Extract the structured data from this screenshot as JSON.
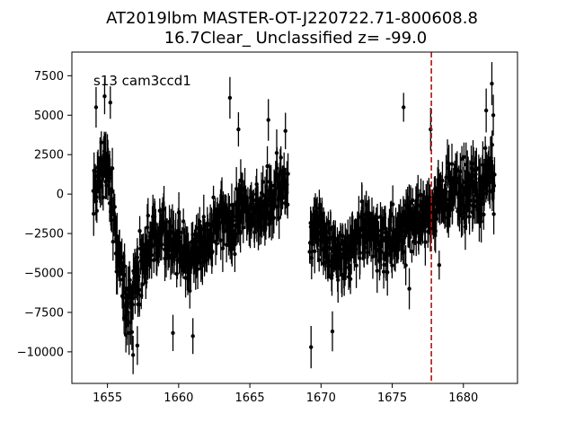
{
  "chart_data": {
    "type": "scatter",
    "title_line1": "AT2019lbm  MASTER-OT-J220722.71-800608.8",
    "title_line2": "16.7Clear_ Unclassified z= -99.0",
    "annotation": "s13 cam3ccd1",
    "xlabel": "",
    "ylabel": "",
    "xlim": [
      1652.5,
      1683.8
    ],
    "ylim": [
      -12000,
      9000
    ],
    "x_ticks": [
      1655,
      1660,
      1665,
      1670,
      1675,
      1680
    ],
    "x_tick_labels": [
      "1655",
      "1660",
      "1665",
      "1670",
      "1675",
      "1680"
    ],
    "y_ticks": [
      -10000,
      -7500,
      -5000,
      -2500,
      0,
      2500,
      5000,
      7500
    ],
    "y_tick_labels": [
      "−10000",
      "−7500",
      "−5000",
      "−2500",
      "0",
      "2500",
      "5000",
      "7500"
    ],
    "grid": false,
    "vline": {
      "x": 1677.75,
      "color": "#e00000",
      "style": "dashed"
    },
    "marker_color": "#000000",
    "segments": [
      {
        "x_start": 1654.0,
        "x_end": 1667.7,
        "knots": [
          {
            "x": 1654.0,
            "y": 0
          },
          {
            "x": 1654.6,
            "y": 1800
          },
          {
            "x": 1655.0,
            "y": 2000
          },
          {
            "x": 1655.5,
            "y": -2000
          },
          {
            "x": 1656.0,
            "y": -5000
          },
          {
            "x": 1656.5,
            "y": -7500
          },
          {
            "x": 1657.0,
            "y": -5500
          },
          {
            "x": 1658.0,
            "y": -3000
          },
          {
            "x": 1659.0,
            "y": -2500
          },
          {
            "x": 1660.0,
            "y": -3500
          },
          {
            "x": 1661.0,
            "y": -4000
          },
          {
            "x": 1662.0,
            "y": -3000
          },
          {
            "x": 1663.0,
            "y": -1500
          },
          {
            "x": 1664.0,
            "y": -1500
          },
          {
            "x": 1665.0,
            "y": -1000
          },
          {
            "x": 1666.0,
            "y": -800
          },
          {
            "x": 1667.0,
            "y": 200
          },
          {
            "x": 1667.7,
            "y": 500
          }
        ],
        "scatter": 2300,
        "highlights": [
          {
            "x": 1654.2,
            "y": 5500
          },
          {
            "x": 1654.8,
            "y": 6200
          },
          {
            "x": 1655.2,
            "y": 5800
          },
          {
            "x": 1656.4,
            "y": -8300
          },
          {
            "x": 1656.8,
            "y": -10200
          },
          {
            "x": 1657.1,
            "y": -9600
          },
          {
            "x": 1663.6,
            "y": 6100
          },
          {
            "x": 1664.2,
            "y": 4100
          },
          {
            "x": 1666.3,
            "y": 4700
          },
          {
            "x": 1667.5,
            "y": 4000
          },
          {
            "x": 1659.6,
            "y": -8800
          },
          {
            "x": 1661.0,
            "y": -9000
          }
        ]
      },
      {
        "x_start": 1669.2,
        "x_end": 1682.2,
        "knots": [
          {
            "x": 1669.2,
            "y": -2500
          },
          {
            "x": 1670.0,
            "y": -2500
          },
          {
            "x": 1671.0,
            "y": -4000
          },
          {
            "x": 1672.0,
            "y": -3500
          },
          {
            "x": 1673.0,
            "y": -2000
          },
          {
            "x": 1674.0,
            "y": -3000
          },
          {
            "x": 1675.0,
            "y": -3000
          },
          {
            "x": 1676.0,
            "y": -2000
          },
          {
            "x": 1677.0,
            "y": -1500
          },
          {
            "x": 1678.0,
            "y": -1000
          },
          {
            "x": 1679.0,
            "y": 200
          },
          {
            "x": 1680.0,
            "y": 0
          },
          {
            "x": 1681.0,
            "y": 500
          },
          {
            "x": 1682.2,
            "y": 1000
          }
        ],
        "scatter": 2300,
        "highlights": [
          {
            "x": 1669.3,
            "y": -9700
          },
          {
            "x": 1670.8,
            "y": -8700
          },
          {
            "x": 1675.8,
            "y": 5500
          },
          {
            "x": 1677.7,
            "y": 4100
          },
          {
            "x": 1681.6,
            "y": 5300
          },
          {
            "x": 1682.0,
            "y": 7000
          },
          {
            "x": 1682.1,
            "y": 5000
          },
          {
            "x": 1676.2,
            "y": -6000
          },
          {
            "x": 1678.3,
            "y": -4500
          }
        ]
      }
    ]
  }
}
